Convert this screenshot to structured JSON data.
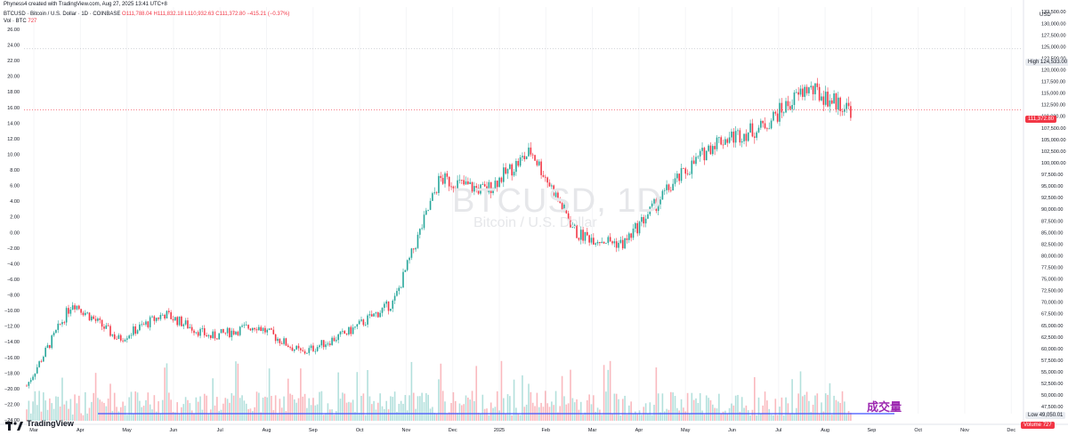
{
  "header": {
    "author_line": "Phyness4 created with TradingView.com, Aug 27, 2025 13:41 UTC+8",
    "symbol_line": "BTCUSD · Bitcoin / U.S. Dollar · 1D · COINBASE",
    "ohlc": "O111,788.04 H111,832.18 L110,932.63 C111,372.80 −415.21 (−0.37%)",
    "vol_label": "Vol · BTC",
    "vol_value": "727"
  },
  "watermark": {
    "symbol": "BTCUSD, 1D",
    "name": "Bitcoin / U.S. Dollar"
  },
  "annotation": "成交量",
  "branding": "TradingView",
  "colors": {
    "up": "#26a69a",
    "down": "#f23645",
    "line": "#3f51ff",
    "annotation": "#9c27b0"
  },
  "chart_data": {
    "type": "candlestick",
    "right_axis_unit": "USD",
    "right_axis_ticks": [
      "132,500.00",
      "130,000.00",
      "127,500.00",
      "125,000.00",
      "122,500.00",
      "120,000.00",
      "117,500.00",
      "115,000.00",
      "112,500.00",
      "110,000.00",
      "107,500.00",
      "105,000.00",
      "102,500.00",
      "100,000.00",
      "97,500.00",
      "95,000.00",
      "92,500.00",
      "90,000.00",
      "87,500.00",
      "85,000.00",
      "82,500.00",
      "80,000.00",
      "77,500.00",
      "75,000.00",
      "72,500.00",
      "70,000.00",
      "67,500.00",
      "65,000.00",
      "62,500.00",
      "60,000.00",
      "57,500.00",
      "55,000.00",
      "52,500.00",
      "50,000.00",
      "47,500.00"
    ],
    "left_axis_ticks": [
      "26.00",
      "24.00",
      "22.00",
      "20.00",
      "18.00",
      "16.00",
      "14.00",
      "12.00",
      "10.00",
      "8.00",
      "6.00",
      "4.00",
      "2.00",
      "0.00",
      "−2.00",
      "−4.00",
      "−6.00",
      "−8.00",
      "−10.00",
      "−12.00",
      "−14.00",
      "−16.00",
      "−18.00",
      "−20.00",
      "−22.00",
      "−24.00"
    ],
    "x_ticks": [
      "Mar",
      "Apr",
      "May",
      "Jun",
      "Jul",
      "Aug",
      "Sep",
      "Oct",
      "Nov",
      "Dec",
      "2025",
      "Feb",
      "Mar",
      "Apr",
      "May",
      "Jun",
      "Jul",
      "Aug",
      "Sep",
      "Oct",
      "Nov",
      "Dec"
    ],
    "high_label": "High",
    "high_value": "124,533.00",
    "last_price": "111,372.80",
    "low_label": "Low",
    "low_value": "49,050.01",
    "volume_label": "Volume",
    "volume_value": "727",
    "ylim": [
      46000,
      133500
    ],
    "price_path": [
      {
        "month": "Feb 2024",
        "close": 52000
      },
      {
        "month": "Mar 2024",
        "close": 70000
      },
      {
        "month": "Apr 2024",
        "close": 62000
      },
      {
        "month": "May 2024",
        "close": 67500
      },
      {
        "month": "Jun 2024",
        "close": 62500
      },
      {
        "month": "Jul 2024",
        "close": 65000
      },
      {
        "month": "Aug 2024",
        "close": 59000
      },
      {
        "month": "Sep 2024",
        "close": 63500
      },
      {
        "month": "Oct 2024",
        "close": 70000
      },
      {
        "month": "Nov 2024",
        "close": 96500
      },
      {
        "month": "Dec 2024",
        "close": 94000
      },
      {
        "month": "Jan 2025",
        "close": 102500
      },
      {
        "month": "Feb 2025",
        "close": 84500
      },
      {
        "month": "Mar 2025",
        "close": 82500
      },
      {
        "month": "Apr 2025",
        "close": 94500
      },
      {
        "month": "May 2025",
        "close": 104500
      },
      {
        "month": "Jun 2025",
        "close": 107500
      },
      {
        "month": "Jul 2025",
        "close": 116000
      },
      {
        "month": "Aug 2025",
        "close": 111372.8
      }
    ],
    "volume_reference": 49050.01
  }
}
